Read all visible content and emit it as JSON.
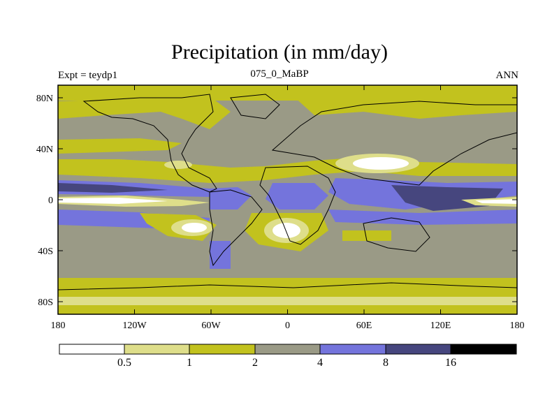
{
  "title": "Precipitation (in mm/day)",
  "subtitle": "075_0_MaBP",
  "experiment_label": "Expt = teydp1",
  "season_label": "ANN",
  "colors": {
    "lt_0_5": "#ffffff",
    "c0_5_1": "#dede8a",
    "c1_2": "#c2c21e",
    "c2_4": "#9a9a86",
    "c4_8": "#7474dc",
    "c8_16": "#46467e",
    "gt_16": "#000000"
  },
  "map": {
    "lat_ticks": [
      "80N",
      "40N",
      "0",
      "40S",
      "80S"
    ],
    "lon_ticks": [
      "180",
      "120W",
      "60W",
      "0",
      "60E",
      "120E",
      "180"
    ]
  },
  "legend": {
    "bins": [
      "<0.5",
      "0.5-1",
      "1-2",
      "2-4",
      "4-8",
      "8-16",
      ">16"
    ],
    "labels": [
      "0.5",
      "1",
      "2",
      "4",
      "8",
      "16"
    ]
  }
}
